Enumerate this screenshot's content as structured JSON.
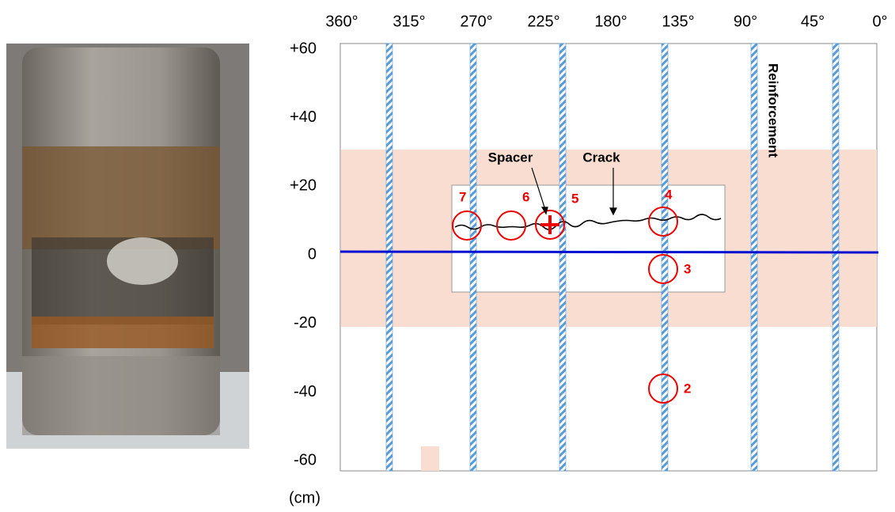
{
  "top_axis": {
    "labels": [
      "360°",
      "315°",
      "270°",
      "225°",
      "180°",
      "135°",
      "90°",
      "45°",
      "0°"
    ]
  },
  "left_axis": {
    "labels": [
      "+60",
      "+40",
      "+20",
      "0",
      "-20",
      "-40",
      "-60"
    ],
    "unit": "(cm)"
  },
  "annotations": {
    "spacer": "Spacer",
    "crack": "Crack",
    "reinforcement": "Reinforcement"
  },
  "markers": [
    {
      "label": "2"
    },
    {
      "label": "3"
    },
    {
      "label": "4"
    },
    {
      "label": "5"
    },
    {
      "label": "6"
    },
    {
      "label": "7"
    }
  ]
}
